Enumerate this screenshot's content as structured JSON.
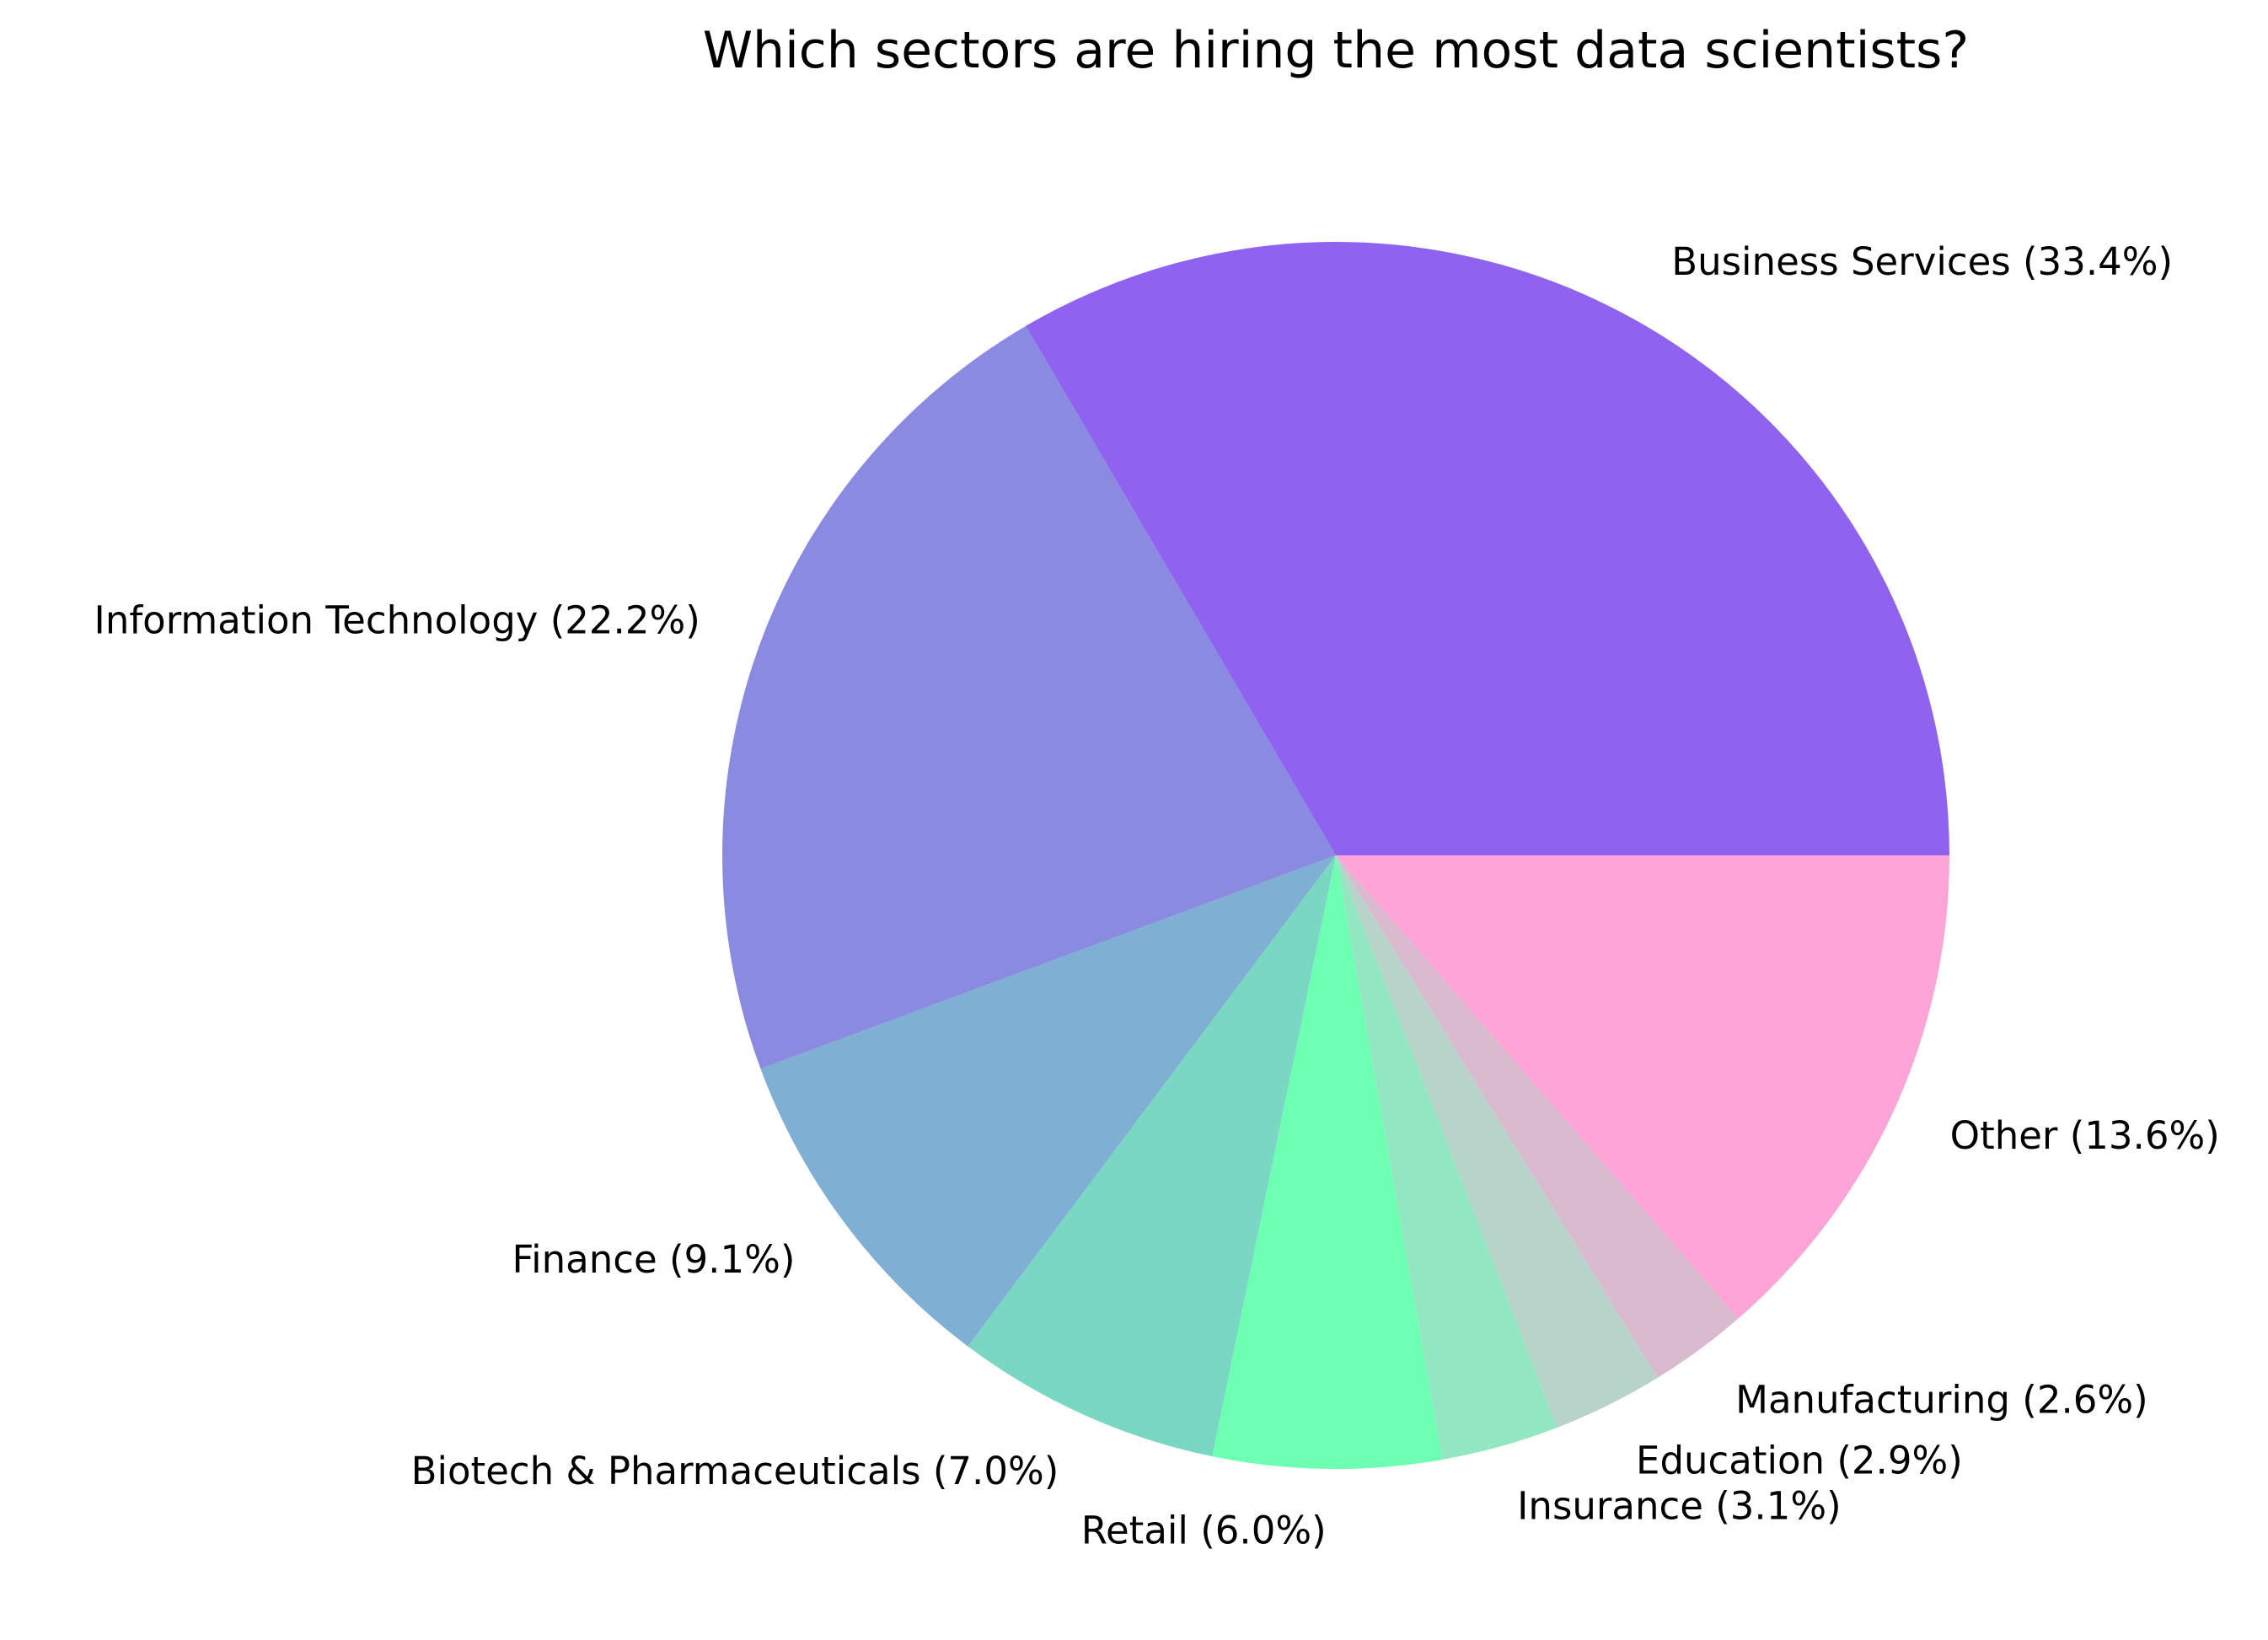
{
  "chart_data": {
    "type": "pie",
    "title": "Which sectors are hiring the most data scientists?",
    "label_format": "{label} ({value}%)",
    "start_angle_deg": 0,
    "direction": "counterclockwise",
    "slices": [
      {
        "label": "Business Services",
        "value": 33.4,
        "color": "#8F63F0"
      },
      {
        "label": "Information Technology",
        "value": 22.2,
        "color": "#8A8BE0"
      },
      {
        "label": "Finance",
        "value": 9.1,
        "color": "#7FAFD2"
      },
      {
        "label": "Biotech & Pharmaceuticals",
        "value": 7.0,
        "color": "#79D7C4"
      },
      {
        "label": "Retail",
        "value": 6.0,
        "color": "#6DFFB2"
      },
      {
        "label": "Insurance",
        "value": 3.1,
        "color": "#93E7C0"
      },
      {
        "label": "Education",
        "value": 2.9,
        "color": "#B8D3CA"
      },
      {
        "label": "Manufacturing",
        "value": 2.6,
        "color": "#D9BACF"
      },
      {
        "label": "Other",
        "value": 13.6,
        "color": "#FFA4D6"
      }
    ]
  }
}
